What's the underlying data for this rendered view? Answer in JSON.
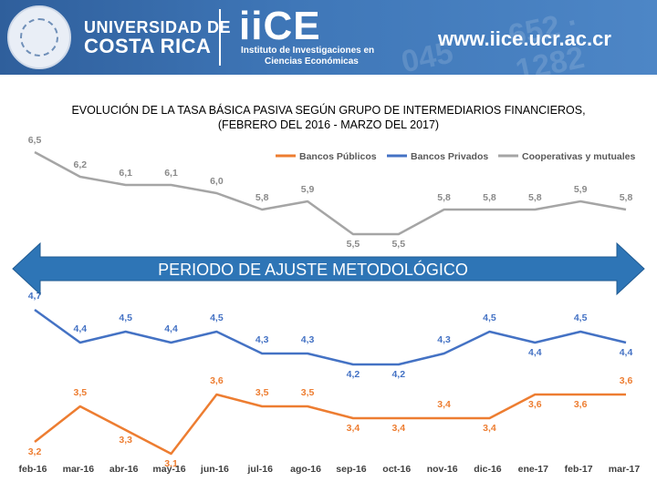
{
  "header": {
    "university_line1": "UNIVERSIDAD DE",
    "university_line2": "COSTA RICA",
    "logo_text": "iiCE",
    "institute_line1": "Instituto de Investigaciones en",
    "institute_line2": "Ciencias Económicas",
    "website": "www.iice.ucr.ac.cr"
  },
  "title_line1": "EVOLUCIÓN DE LA TASA BÁSICA PASIVA SEGÚN GRUPO DE INTERMEDIARIOS FINANCIEROS,",
  "title_line2": "(FEBRERO DEL 2016 - MARZO DEL 2017)",
  "annotation": "PERIODO DE AJUSTE METODOLÓGICO",
  "colors": {
    "banner": "#3f77b8",
    "publicos": "#ED7D31",
    "privados": "#4472C4",
    "cooperativas": "#A5A5A5",
    "arrow": "#2E75B6"
  },
  "chart_data": {
    "type": "line",
    "categories": [
      "feb-16",
      "mar-16",
      "abr-16",
      "may-16",
      "jun-16",
      "jul-16",
      "ago-16",
      "sep-16",
      "oct-16",
      "nov-16",
      "dic-16",
      "ene-17",
      "feb-17",
      "mar-17"
    ],
    "series": [
      {
        "name": "Bancos Públicos",
        "values": [
          3.2,
          3.5,
          3.3,
          3.1,
          3.6,
          3.5,
          3.5,
          3.4,
          3.4,
          3.4,
          3.4,
          3.6,
          3.6,
          3.6
        ],
        "labels": [
          "3,2",
          "3,5",
          "3,3",
          "3,1",
          "3,6",
          "3,5",
          "3,5",
          "3,4",
          "3,4",
          "3,4",
          "3,4",
          "3,6",
          "3,6",
          "3,6"
        ]
      },
      {
        "name": "Bancos Privados",
        "values": [
          4.7,
          4.4,
          4.5,
          4.4,
          4.5,
          4.3,
          4.3,
          4.2,
          4.2,
          4.3,
          4.5,
          4.4,
          4.5,
          4.4
        ],
        "labels": [
          "4,7",
          "4,4",
          "4,5",
          "4,4",
          "4,5",
          "4,3",
          "4,3",
          "4,2",
          "4,2",
          "4,3",
          "4,5",
          "4,4",
          "4,5",
          "4,4"
        ]
      },
      {
        "name": "Cooperativas y mutuales",
        "values": [
          6.5,
          6.2,
          6.1,
          6.1,
          6.0,
          5.8,
          5.9,
          5.5,
          5.5,
          5.8,
          5.8,
          5.8,
          5.9,
          5.8
        ],
        "labels": [
          "6,5",
          "6,2",
          "6,1",
          "6,1",
          "6,0",
          "5,8",
          "5,9",
          "5,5",
          "5,5",
          "5,8",
          "5,8",
          "5,8",
          "5,9",
          "5,8"
        ]
      }
    ],
    "legend": [
      "Bancos Públicos",
      "Bancos Privados",
      "Cooperativas y mutuales"
    ],
    "legend_position": "top-right",
    "xlabel": "",
    "ylabel": ""
  }
}
